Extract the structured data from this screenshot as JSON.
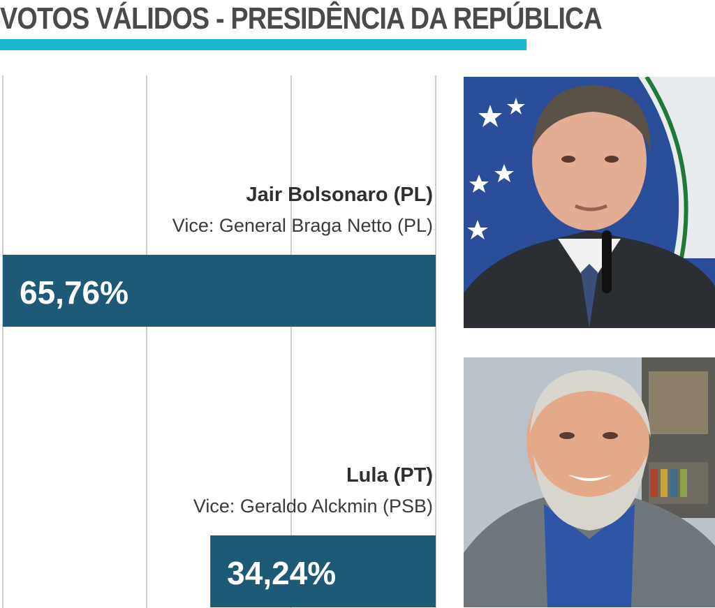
{
  "title": "VOTOS VÁLIDOS - PRESIDÊNCIA DA REPÚBLICA",
  "colors": {
    "title_rule": "#1ab6d4",
    "bar": "#1d5a78",
    "title_text": "#4a4a4a"
  },
  "chart_data": {
    "type": "bar",
    "orientation": "horizontal",
    "title": "VOTOS VÁLIDOS - PRESIDÊNCIA DA REPÚBLICA",
    "xlim": [
      0,
      100
    ],
    "grid": true,
    "categories": [
      "Jair Bolsonaro (PL)",
      "Lula (PT)"
    ],
    "values": [
      65.76,
      34.24
    ],
    "value_labels": [
      "65,76%",
      "34,24%"
    ],
    "subtitles": [
      "Vice: General Braga Netto (PL)",
      "Vice: Geraldo Alckmin (PSB)"
    ]
  },
  "photos": [
    {
      "icon": "candidate-photo-bolsonaro"
    },
    {
      "icon": "candidate-photo-lula"
    }
  ]
}
